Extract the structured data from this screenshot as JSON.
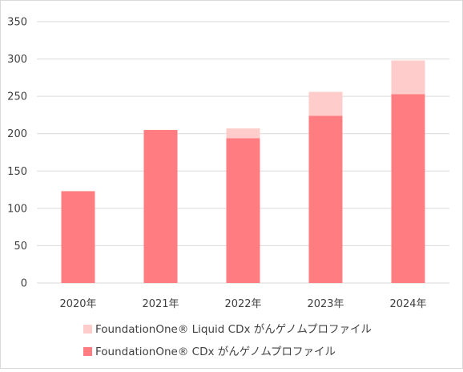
{
  "chart_data": {
    "type": "bar",
    "stacked": true,
    "categories": [
      "2020年",
      "2021年",
      "2022年",
      "2023年",
      "2024年"
    ],
    "series": [
      {
        "name": "FoundationOne® CDx がんゲノムプロファイル",
        "color": "#ff7c80",
        "values": [
          123,
          205,
          194,
          224,
          253
        ]
      },
      {
        "name": "FoundationOne® Liquid CDx がんゲノムプロファイル",
        "color": "#ffcccc",
        "values": [
          0,
          0,
          13,
          32,
          45
        ]
      }
    ],
    "ylim": [
      0,
      350
    ],
    "yticks": [
      0,
      50,
      100,
      150,
      200,
      250,
      300,
      350
    ],
    "grid": true,
    "legend_position": "bottom"
  }
}
